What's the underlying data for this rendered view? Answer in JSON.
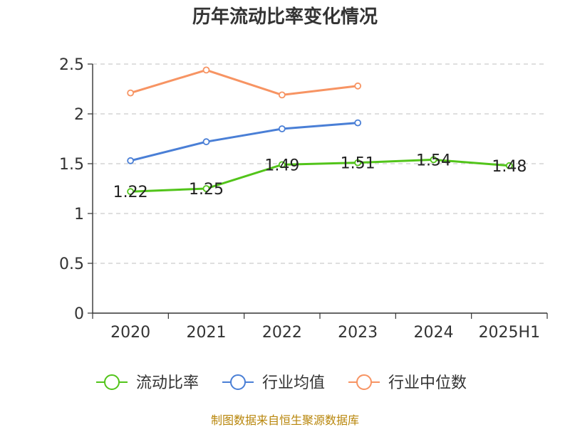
{
  "chart_data": {
    "type": "line",
    "title": "历年流动比率变化情况",
    "categories": [
      "2020",
      "2021",
      "2022",
      "2023",
      "2024",
      "2025H1"
    ],
    "ylim": [
      0,
      2.5
    ],
    "yticks": [
      "0",
      "0.5",
      "1",
      "1.5",
      "2",
      "2.5"
    ],
    "grid": true,
    "legend_position": "bottom",
    "series": [
      {
        "name": "流动比率",
        "color": "#52c41a",
        "values": [
          1.22,
          1.25,
          1.49,
          1.51,
          1.54,
          1.48
        ],
        "labels": [
          "1.22",
          "1.25",
          "1.49",
          "1.51",
          "1.54",
          "1.48"
        ]
      },
      {
        "name": "行业均值",
        "color": "#4a7fd6",
        "values": [
          1.53,
          1.72,
          1.85,
          1.91,
          null,
          null
        ]
      },
      {
        "name": "行业中位数",
        "color": "#f79463",
        "values": [
          2.21,
          2.44,
          2.19,
          2.28,
          null,
          null
        ]
      }
    ]
  },
  "source": "制图数据来自恒生聚源数据库"
}
